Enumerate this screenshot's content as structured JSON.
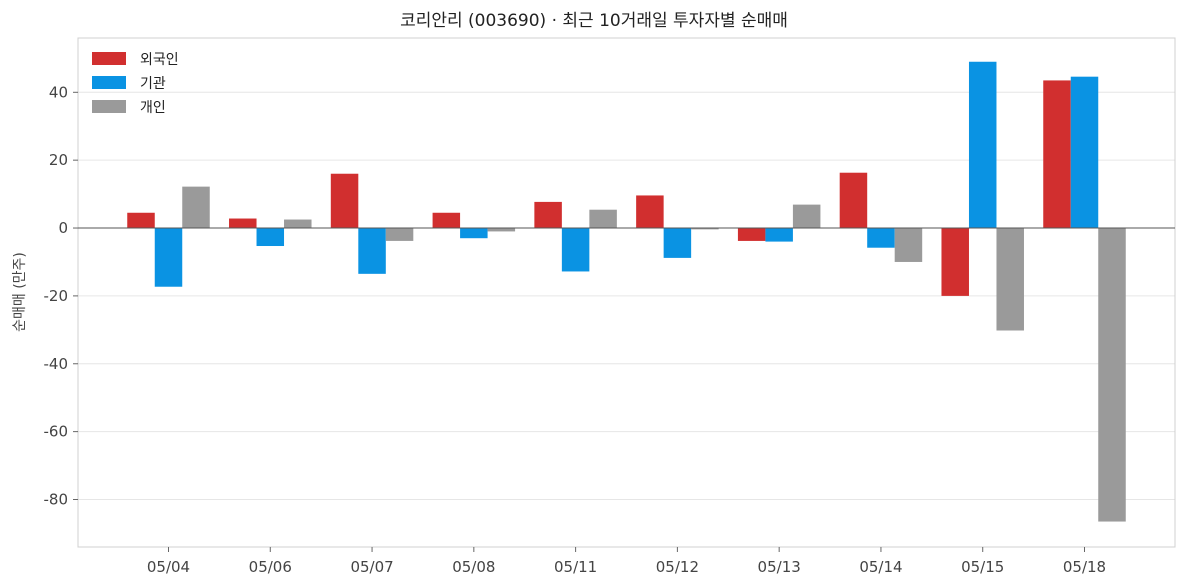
{
  "chart_data": {
    "type": "bar",
    "title": "코리안리 (003690) · 최근 10거래일 투자자별 순매매",
    "xlabel": "",
    "ylabel": "순매매 (만주)",
    "ylim": [
      -94,
      56
    ],
    "yticks": [
      40,
      20,
      0,
      -20,
      -40,
      -60,
      -80
    ],
    "grid": true,
    "legend_position": "top-left",
    "categories": [
      "05/04",
      "05/06",
      "05/07",
      "05/08",
      "05/11",
      "05/12",
      "05/13",
      "05/14",
      "05/15",
      "05/18"
    ],
    "series": [
      {
        "name": "외국인",
        "color": "#d12f2f",
        "values": [
          4.5,
          2.8,
          16.0,
          4.5,
          7.7,
          9.6,
          -3.8,
          16.3,
          -20.0,
          43.5
        ]
      },
      {
        "name": "기관",
        "color": "#0a93e3",
        "values": [
          -17.3,
          -5.3,
          -13.5,
          -3.0,
          -12.8,
          -8.8,
          -4.0,
          -5.8,
          49.0,
          44.6
        ]
      },
      {
        "name": "개인",
        "color": "#9a9a9a",
        "values": [
          12.2,
          2.5,
          -3.8,
          -1.0,
          5.4,
          -0.4,
          6.9,
          -10.0,
          -30.2,
          -86.5
        ]
      }
    ]
  }
}
